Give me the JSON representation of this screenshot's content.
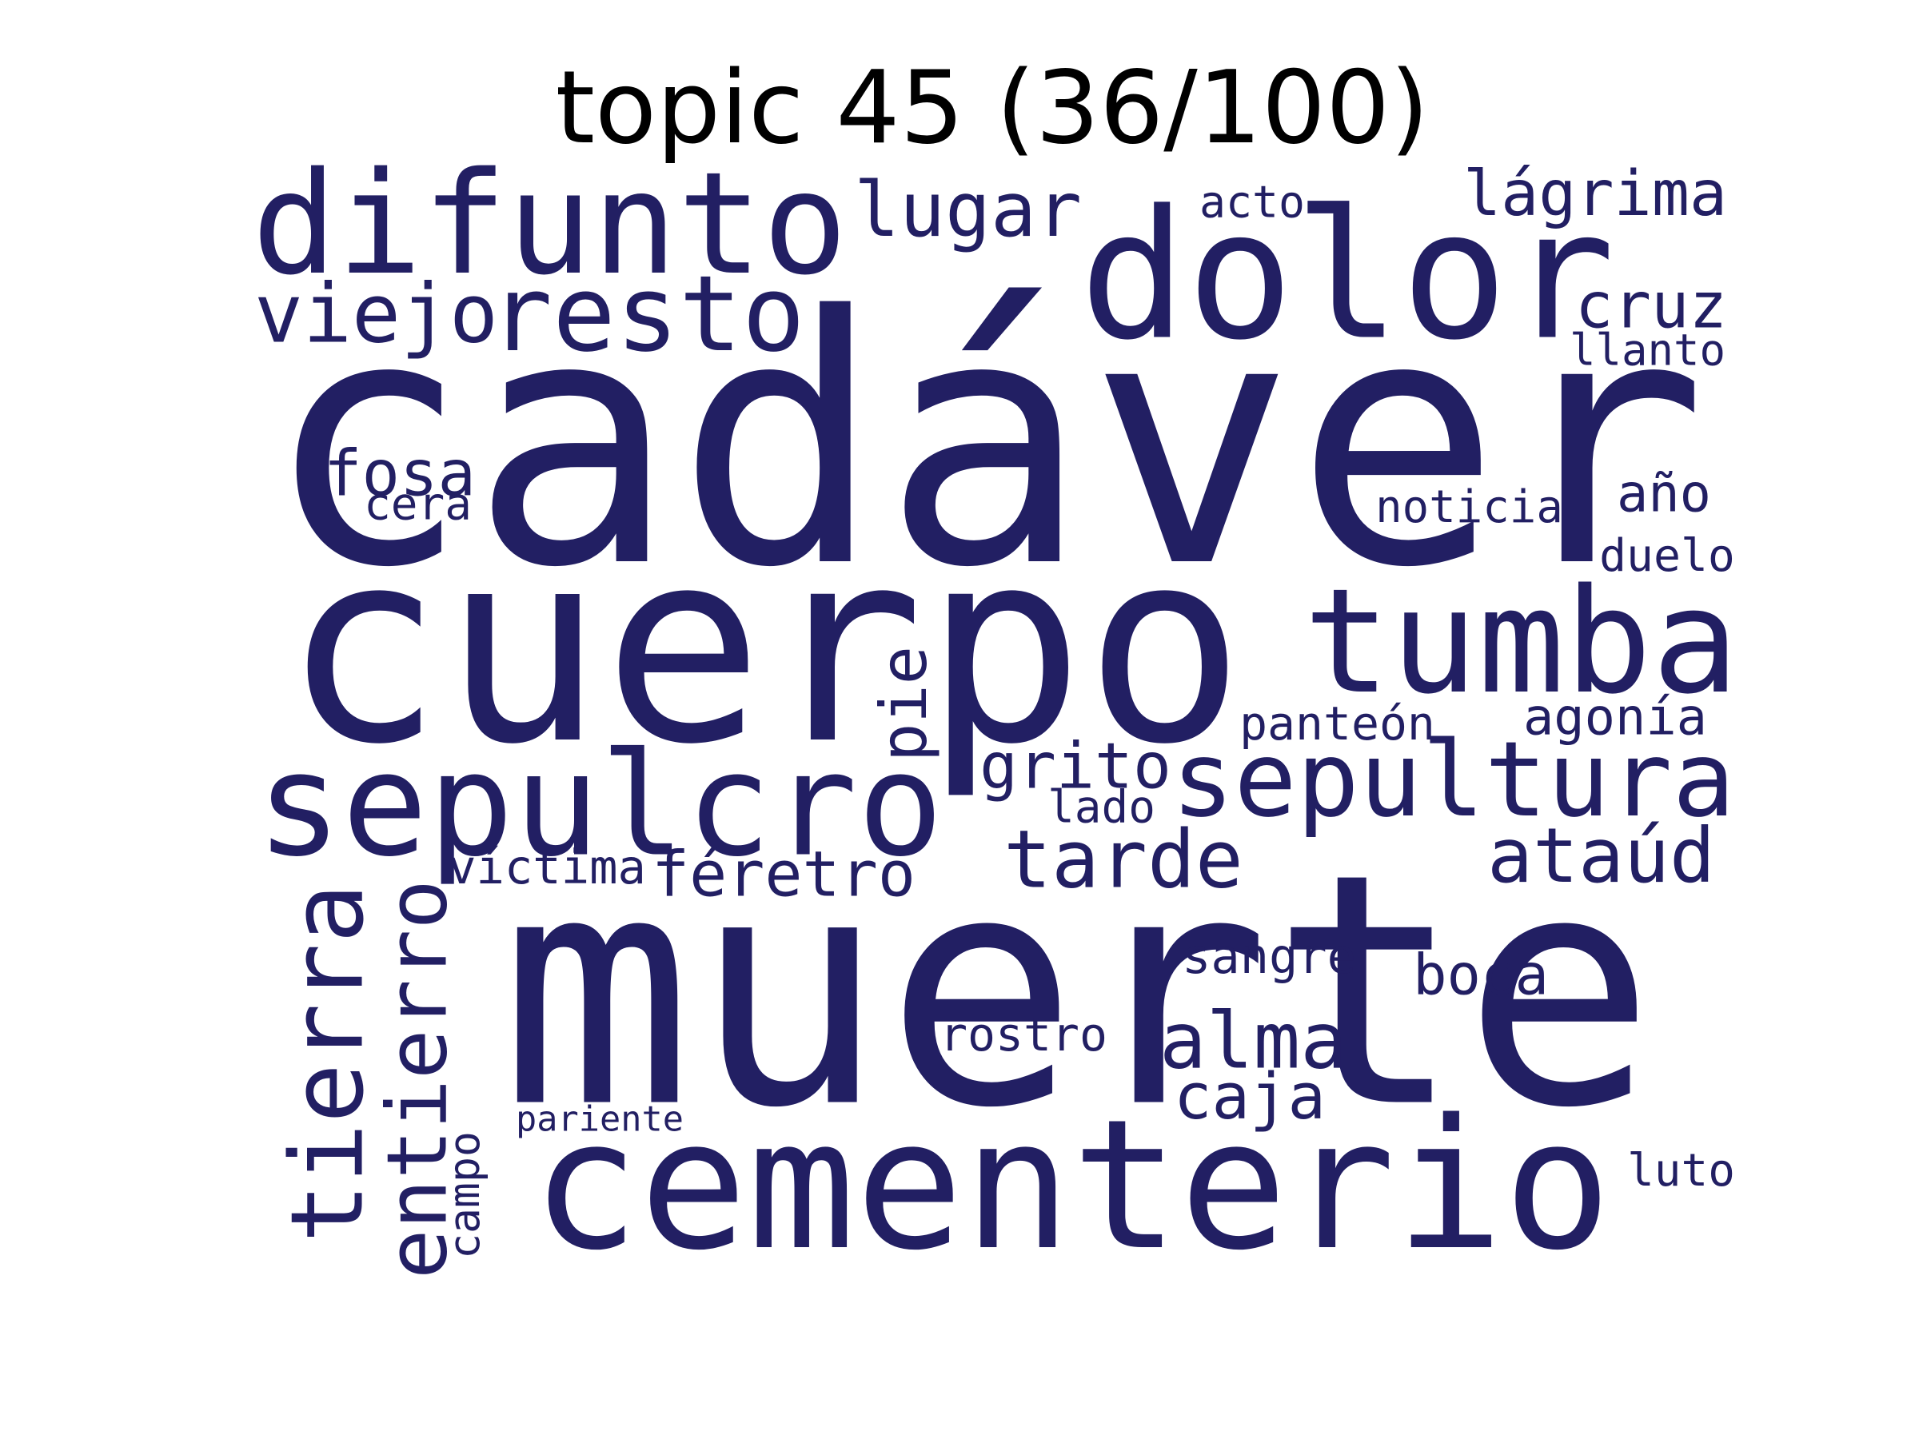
{
  "title": "topic 45 (36/100)",
  "word_color": "#221F63",
  "title_color": "#000000",
  "background": "#ffffff",
  "words": [
    {
      "text": "cadáver"
    },
    {
      "text": "muerte"
    },
    {
      "text": "cuerpo"
    },
    {
      "text": "dolor"
    },
    {
      "text": "difunto"
    },
    {
      "text": "cementerio"
    },
    {
      "text": "sepulcro"
    },
    {
      "text": "tumba"
    },
    {
      "text": "sepultura"
    },
    {
      "text": "resto"
    },
    {
      "text": "viejo"
    },
    {
      "text": "lugar"
    },
    {
      "text": "lágrima"
    },
    {
      "text": "cruz"
    },
    {
      "text": "tierra"
    },
    {
      "text": "entierro"
    },
    {
      "text": "tarde"
    },
    {
      "text": "ataúd"
    },
    {
      "text": "alma"
    },
    {
      "text": "fosa"
    },
    {
      "text": "féretro"
    },
    {
      "text": "grito"
    },
    {
      "text": "caja"
    },
    {
      "text": "pie"
    },
    {
      "text": "agonía"
    },
    {
      "text": "año"
    },
    {
      "text": "llanto"
    },
    {
      "text": "víctima"
    },
    {
      "text": "panteón"
    },
    {
      "text": "noticia"
    },
    {
      "text": "sangre"
    },
    {
      "text": "rostro"
    },
    {
      "text": "acto"
    },
    {
      "text": "duelo"
    },
    {
      "text": "boca"
    },
    {
      "text": "cera"
    },
    {
      "text": "lado"
    },
    {
      "text": "campo"
    },
    {
      "text": "luto"
    },
    {
      "text": "pariente"
    }
  ]
}
